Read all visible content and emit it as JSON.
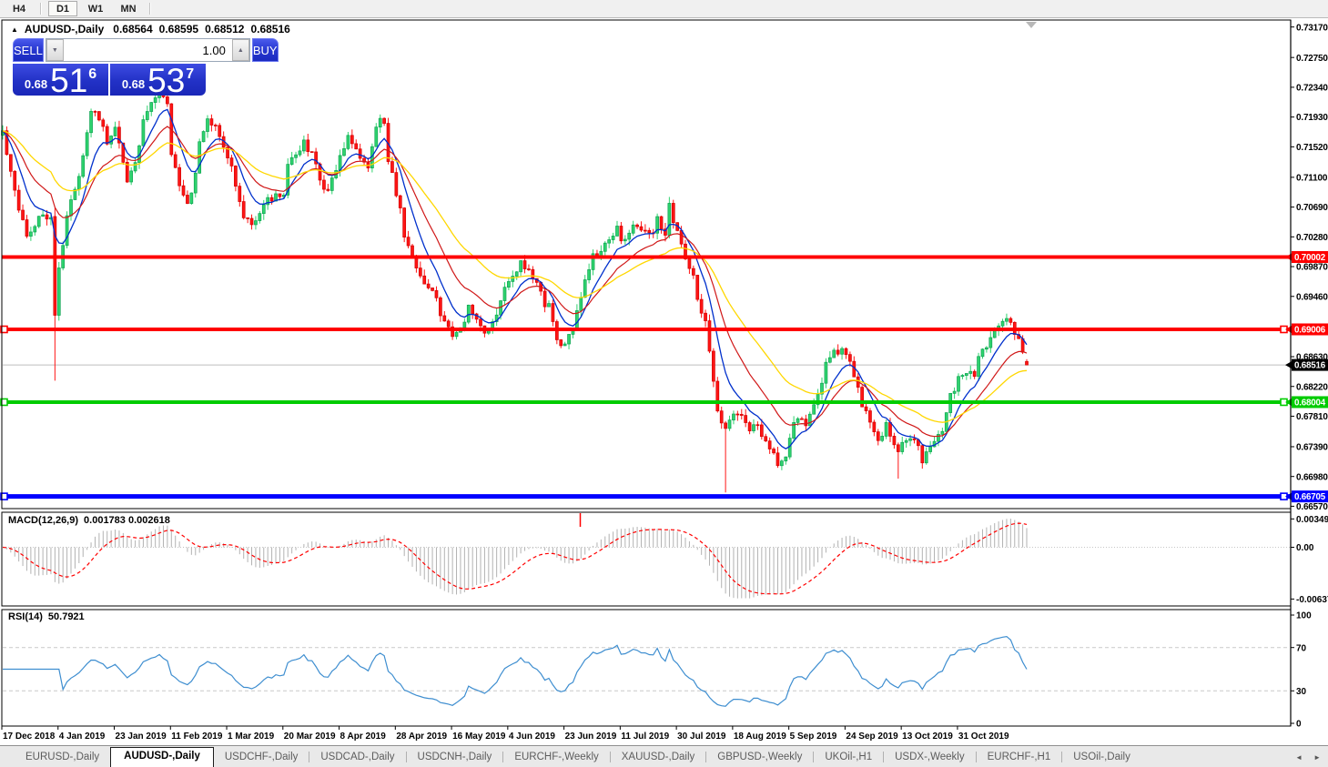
{
  "toolbar": {
    "timeframes": [
      {
        "label": "H4",
        "active": false
      },
      {
        "label": "D1",
        "active": true
      },
      {
        "label": "W1",
        "active": false
      },
      {
        "label": "MN",
        "active": false
      }
    ]
  },
  "chart_header": {
    "collapse_icon": "▲",
    "symbol_label": "AUDUSD-,Daily",
    "open": "0.68564",
    "high": "0.68595",
    "low": "0.68512",
    "close": "0.68516"
  },
  "one_click": {
    "sell_label": "SELL",
    "buy_label": "BUY",
    "volume": "1.00",
    "spinner_down": "▼",
    "spinner_up": "▲",
    "sell_price": {
      "prefix": "0.68",
      "big": "51",
      "pip": "6"
    },
    "buy_price": {
      "prefix": "0.68",
      "big": "53",
      "pip": "7"
    }
  },
  "price_axis": {
    "ticks": [
      "0.73170",
      "0.72750",
      "0.72340",
      "0.71930",
      "0.71520",
      "0.71100",
      "0.70690",
      "0.70280",
      "0.69870",
      "0.69460",
      "0.68630",
      "0.68220",
      "0.67810",
      "0.67390",
      "0.66980",
      "0.66570"
    ],
    "current_price": {
      "value": "0.68516",
      "bg": "#000000",
      "fg": "#ffffff"
    }
  },
  "time_axis": {
    "labels": [
      "17 Dec 2018",
      "4 Jan 2019",
      "23 Jan 2019",
      "11 Feb 2019",
      "1 Mar 2019",
      "20 Mar 2019",
      "8 Apr 2019",
      "28 Apr 2019",
      "16 May 2019",
      "4 Jun 2019",
      "23 Jun 2019",
      "11 Jul 2019",
      "30 Jul 2019",
      "18 Aug 2019",
      "5 Sep 2019",
      "24 Sep 2019",
      "13 Oct 2019",
      "31 Oct 2019"
    ]
  },
  "macd_panel": {
    "title": "MACD(12,26,9)",
    "values": "0.001783 0.002618",
    "axis": [
      "0.00349",
      "0.00",
      "-0.00637"
    ]
  },
  "rsi_panel": {
    "title": "RSI(14)",
    "value": "50.7921",
    "axis": [
      "100",
      "70",
      "30",
      "0"
    ]
  },
  "tab_bar": {
    "tabs": [
      {
        "label": "EURUSD-,Daily",
        "active": false
      },
      {
        "label": "AUDUSD-,Daily",
        "active": true
      },
      {
        "label": "USDCHF-,Daily",
        "active": false
      },
      {
        "label": "USDCAD-,Daily",
        "active": false
      },
      {
        "label": "USDCNH-,Daily",
        "active": false
      },
      {
        "label": "EURCHF-,Weekly",
        "active": false
      },
      {
        "label": "XAUUSD-,Daily",
        "active": false
      },
      {
        "label": "GBPUSD-,Weekly",
        "active": false
      },
      {
        "label": "UKOil-,H1",
        "active": false
      },
      {
        "label": "USDX-,Weekly",
        "active": false
      },
      {
        "label": "EURCHF-,H1",
        "active": false
      },
      {
        "label": "USOil-,Daily",
        "active": false
      }
    ],
    "nav_prev": "◄",
    "nav_next": "►"
  },
  "chart_data": {
    "type": "candlestick",
    "symbol": "AUDUSD",
    "timeframe": "Daily",
    "bars": 256,
    "current_price": 0.68516,
    "levels": [
      {
        "price": 0.70002,
        "color": "#ff0000",
        "label": "0.70002",
        "width": 4,
        "handles": false
      },
      {
        "price": 0.69006,
        "color": "#ff0000",
        "label": "0.69006",
        "width": 4,
        "handles": true
      },
      {
        "price": 0.68004,
        "color": "#00cc00",
        "label": "0.68004",
        "width": 4,
        "handles": true
      },
      {
        "price": 0.66705,
        "color": "#0000ff",
        "label": "0.66705",
        "width": 5,
        "handles": true
      }
    ],
    "moving_averages": [
      {
        "period": 8,
        "color": "#0030cc",
        "w": 1.3
      },
      {
        "period": 17,
        "color": "#d01818",
        "w": 1.2
      },
      {
        "period": 34,
        "color": "#ffd700",
        "w": 1.3
      }
    ],
    "macd": {
      "fast": 12,
      "slow": 26,
      "signal": 9,
      "hist_color": "#b2b2b2",
      "signal_color": "#ff0000"
    },
    "rsi": {
      "period": 14,
      "color": "#3e8ed0",
      "levels": [
        70,
        30
      ]
    },
    "colors": {
      "bull": "#2fd36e",
      "bull_border": "#0da351",
      "bear": "#ff1515",
      "bear_border": "#d40000",
      "bid_line": "#bdbdbd"
    },
    "price_path": [
      [
        0,
        0.7168
      ],
      [
        2,
        0.7116
      ],
      [
        4,
        0.706
      ],
      [
        6,
        0.7038
      ],
      [
        10,
        0.705
      ],
      [
        12,
        0.7056
      ],
      [
        14,
        0.6992
      ],
      [
        16,
        0.7053
      ],
      [
        19,
        0.711
      ],
      [
        22,
        0.7206
      ],
      [
        24,
        0.7185
      ],
      [
        26,
        0.7158
      ],
      [
        28,
        0.7185
      ],
      [
        30,
        0.7135
      ],
      [
        31,
        0.7097
      ],
      [
        33,
        0.7128
      ],
      [
        35,
        0.7191
      ],
      [
        37,
        0.7214
      ],
      [
        39,
        0.7229
      ],
      [
        41,
        0.7204
      ],
      [
        42,
        0.7147
      ],
      [
        44,
        0.7097
      ],
      [
        46,
        0.7068
      ],
      [
        48,
        0.711
      ],
      [
        49,
        0.7153
      ],
      [
        51,
        0.7191
      ],
      [
        53,
        0.7179
      ],
      [
        55,
        0.7151
      ],
      [
        56,
        0.7138
      ],
      [
        58,
        0.7103
      ],
      [
        60,
        0.706
      ],
      [
        62,
        0.7038
      ],
      [
        64,
        0.706
      ],
      [
        66,
        0.7088
      ],
      [
        70,
        0.7081
      ],
      [
        71,
        0.7122
      ],
      [
        73,
        0.7143
      ],
      [
        75,
        0.716
      ],
      [
        77,
        0.7141
      ],
      [
        79,
        0.711
      ],
      [
        81,
        0.7093
      ],
      [
        82,
        0.7113
      ],
      [
        84,
        0.7138
      ],
      [
        86,
        0.716
      ],
      [
        88,
        0.7151
      ],
      [
        90,
        0.7138
      ],
      [
        91,
        0.7122
      ],
      [
        93,
        0.7179
      ],
      [
        95,
        0.7191
      ],
      [
        96,
        0.7141
      ],
      [
        98,
        0.7091
      ],
      [
        100,
        0.7028
      ],
      [
        102,
        0.6993
      ],
      [
        104,
        0.6984
      ],
      [
        105,
        0.6972
      ],
      [
        107,
        0.6947
      ],
      [
        109,
        0.6922
      ],
      [
        111,
        0.6906
      ],
      [
        113,
        0.6893
      ],
      [
        115,
        0.691
      ],
      [
        116,
        0.6926
      ],
      [
        118,
        0.6918
      ],
      [
        120,
        0.6901
      ],
      [
        122,
        0.6913
      ],
      [
        124,
        0.6931
      ],
      [
        125,
        0.6959
      ],
      [
        127,
        0.6981
      ],
      [
        129,
        0.6988
      ],
      [
        131,
        0.6976
      ],
      [
        133,
        0.6963
      ],
      [
        134,
        0.6951
      ],
      [
        136,
        0.6931
      ],
      [
        138,
        0.6884
      ],
      [
        140,
        0.6878
      ],
      [
        142,
        0.691
      ],
      [
        144,
        0.6941
      ],
      [
        145,
        0.6968
      ],
      [
        147,
        0.6997
      ],
      [
        149,
        0.7018
      ],
      [
        151,
        0.7026
      ],
      [
        153,
        0.7034
      ],
      [
        154,
        0.7018
      ],
      [
        156,
        0.7038
      ],
      [
        158,
        0.7047
      ],
      [
        160,
        0.7031
      ],
      [
        162,
        0.7026
      ],
      [
        163,
        0.7056
      ],
      [
        165,
        0.7034
      ],
      [
        166,
        0.7072
      ],
      [
        168,
        0.7026
      ],
      [
        170,
        0.7001
      ],
      [
        172,
        0.6978
      ],
      [
        173,
        0.6943
      ],
      [
        175,
        0.6903
      ],
      [
        177,
        0.6828
      ],
      [
        178,
        0.6784
      ],
      [
        180,
        0.6765
      ],
      [
        182,
        0.678
      ],
      [
        184,
        0.6775
      ],
      [
        186,
        0.6763
      ],
      [
        187,
        0.6778
      ],
      [
        189,
        0.6759
      ],
      [
        191,
        0.6734
      ],
      [
        193,
        0.6713
      ],
      [
        195,
        0.6728
      ],
      [
        196,
        0.6755
      ],
      [
        198,
        0.6778
      ],
      [
        200,
        0.6765
      ],
      [
        202,
        0.68
      ],
      [
        204,
        0.6834
      ],
      [
        205,
        0.6853
      ],
      [
        207,
        0.6868
      ],
      [
        209,
        0.6875
      ],
      [
        211,
        0.6859
      ],
      [
        213,
        0.6818
      ],
      [
        214,
        0.679
      ],
      [
        216,
        0.6771
      ],
      [
        218,
        0.6755
      ],
      [
        220,
        0.6765
      ],
      [
        222,
        0.6743
      ],
      [
        223,
        0.6734
      ],
      [
        225,
        0.6753
      ],
      [
        227,
        0.675
      ],
      [
        229,
        0.6712
      ],
      [
        231,
        0.6745
      ],
      [
        234,
        0.6765
      ],
      [
        236,
        0.6803
      ],
      [
        238,
        0.683
      ],
      [
        240,
        0.6847
      ],
      [
        242,
        0.6838
      ],
      [
        243,
        0.6855
      ],
      [
        245,
        0.6875
      ],
      [
        247,
        0.691
      ],
      [
        249,
        0.6919
      ],
      [
        251,
        0.6903
      ],
      [
        253,
        0.6885
      ],
      [
        255,
        0.68516
      ]
    ],
    "candle_overrides": {
      "13": {
        "o": 0.7056,
        "h": 0.7068,
        "l": 0.683,
        "c": 0.692
      },
      "180": {
        "l": 0.6676
      },
      "223": {
        "l": 0.6695
      },
      "255": {
        "o": 0.68564,
        "h": 0.68595,
        "l": 0.68512,
        "c": 0.68516
      }
    }
  }
}
